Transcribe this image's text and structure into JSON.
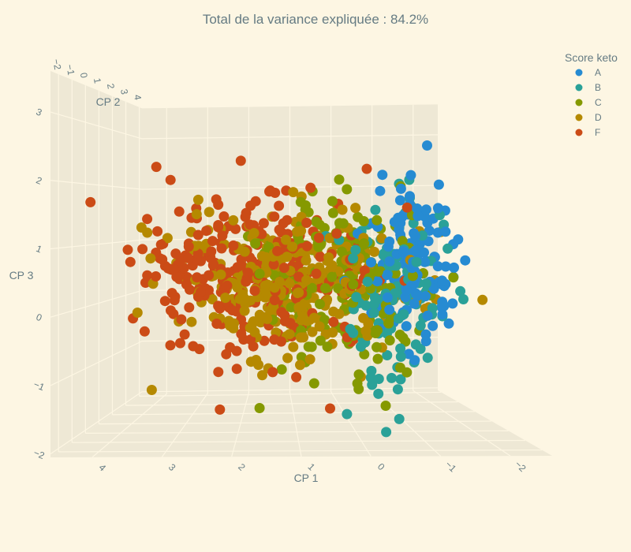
{
  "chart_data": {
    "type": "scatter",
    "title": "Total de la variance expliquée : 84.2%",
    "axes": {
      "x": {
        "label": "CP 1",
        "range": [
          -2.6,
          4.6
        ],
        "ticks": [
          "4",
          "3",
          "2",
          "1",
          "0",
          "−1",
          "−2"
        ],
        "tick_values": [
          4,
          3,
          2,
          1,
          0,
          -1,
          -2
        ]
      },
      "y": {
        "label": "CP 2",
        "range": [
          -2.6,
          4.2
        ],
        "ticks": [
          "4",
          "3",
          "2",
          "1",
          "0",
          "−1",
          "−2"
        ],
        "tick_values": [
          4,
          3,
          2,
          1,
          0,
          -1,
          -2
        ]
      },
      "z": {
        "label": "CP 3",
        "range": [
          -2.05,
          3.6
        ],
        "ticks": [
          "−2",
          "−1",
          "0",
          "1",
          "2",
          "3"
        ],
        "tick_values": [
          -2,
          -1,
          0,
          1,
          2,
          3
        ]
      }
    },
    "legend": {
      "title": "Score keto",
      "placement": "top-right",
      "entries": [
        "A",
        "B",
        "C",
        "D",
        "F"
      ]
    },
    "series": [
      {
        "name": "A",
        "color": "#268bd2",
        "n": 140,
        "center": [
          -0.9,
          -0.5,
          0.8
        ],
        "spread": [
          0.35,
          0.5,
          0.7
        ]
      },
      {
        "name": "B",
        "color": "#2aa198",
        "n": 110,
        "center": [
          -0.55,
          -0.3,
          0.1
        ],
        "spread": [
          0.45,
          0.55,
          0.8
        ]
      },
      {
        "name": "C",
        "color": "#859900",
        "n": 200,
        "center": [
          0.2,
          0.1,
          0.25
        ],
        "spread": [
          0.7,
          0.6,
          0.75
        ]
      },
      {
        "name": "D",
        "color": "#b58900",
        "n": 320,
        "center": [
          1.2,
          0.0,
          0.35
        ],
        "spread": [
          0.9,
          0.6,
          0.55
        ]
      },
      {
        "name": "F",
        "color": "#cb4b16",
        "n": 300,
        "center": [
          1.8,
          0.1,
          0.5
        ],
        "spread": [
          1.0,
          0.6,
          0.65
        ]
      }
    ]
  }
}
